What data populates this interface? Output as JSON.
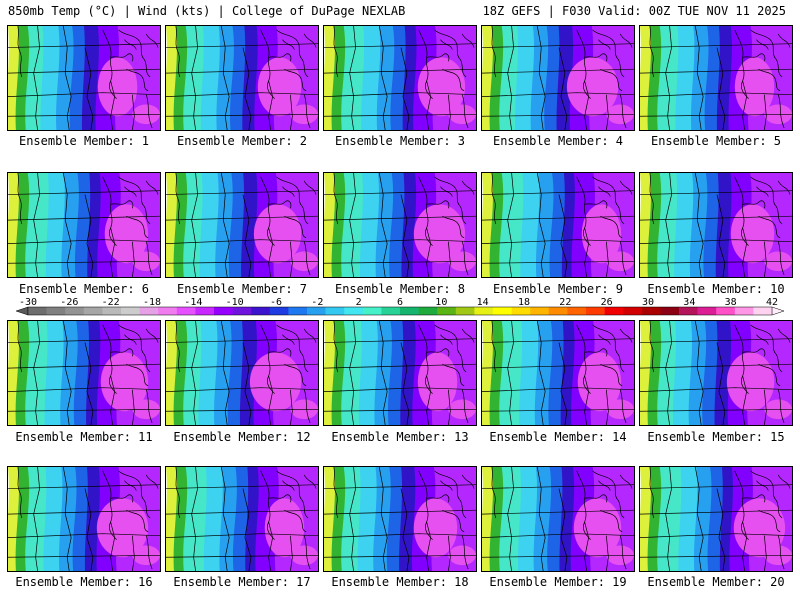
{
  "header": {
    "left": "850mb Temp (°C) | Wind (kts) | College of DuPage NEXLAB",
    "right": "18Z GEFS | F030 Valid: 00Z TUE NOV 11 2025"
  },
  "panels": [
    {
      "label": "Ensemble Member: 1"
    },
    {
      "label": "Ensemble Member: 2"
    },
    {
      "label": "Ensemble Member: 3"
    },
    {
      "label": "Ensemble Member: 4"
    },
    {
      "label": "Ensemble Member: 5"
    },
    {
      "label": "Ensemble Member: 6"
    },
    {
      "label": "Ensemble Member: 7"
    },
    {
      "label": "Ensemble Member: 8"
    },
    {
      "label": "Ensemble Member: 9"
    },
    {
      "label": "Ensemble Member: 10"
    },
    {
      "label": "Ensemble Member: 11"
    },
    {
      "label": "Ensemble Member: 12"
    },
    {
      "label": "Ensemble Member: 13"
    },
    {
      "label": "Ensemble Member: 14"
    },
    {
      "label": "Ensemble Member: 15"
    },
    {
      "label": "Ensemble Member: 16"
    },
    {
      "label": "Ensemble Member: 17"
    },
    {
      "label": "Ensemble Member: 18"
    },
    {
      "label": "Ensemble Member: 19"
    },
    {
      "label": "Ensemble Member: 20"
    }
  ],
  "colorbar": {
    "tick_labels": [
      "-30",
      "-26",
      "-22",
      "-18",
      "-14",
      "-10",
      "-6",
      "-2",
      "2",
      "6",
      "10",
      "14",
      "18",
      "22",
      "26",
      "30",
      "34",
      "38",
      "42"
    ],
    "colors": [
      "#6e6e6e",
      "#808080",
      "#939393",
      "#a6a6a6",
      "#b9b9b9",
      "#cccccc",
      "#e6a0e6",
      "#f07cf0",
      "#e650ff",
      "#c828ff",
      "#9600ff",
      "#6e14dc",
      "#3c14cd",
      "#1e3ce1",
      "#1e78f0",
      "#28a0f0",
      "#32c8f0",
      "#41e6f0",
      "#46f0c8",
      "#28d296",
      "#14b46e",
      "#1eaa3c",
      "#5ab414",
      "#a0c814",
      "#e6f014",
      "#ffff00",
      "#ffdc00",
      "#ffb400",
      "#ff8c00",
      "#ff6400",
      "#ff3c00",
      "#f00000",
      "#d20000",
      "#aa0000",
      "#8c0014",
      "#b4145a",
      "#dc1e96",
      "#ff50c8",
      "#ff96e6",
      "#ffd2f0"
    ]
  },
  "map_colors": {
    "bands": [
      "#dcf03c",
      "#32b432",
      "#46e6c8",
      "#3cd2f0",
      "#28a0f0",
      "#1e64e6",
      "#3214c8",
      "#8200ff",
      "#b428ff"
    ],
    "warm_core": "#e650f0",
    "lines": "#000000"
  }
}
